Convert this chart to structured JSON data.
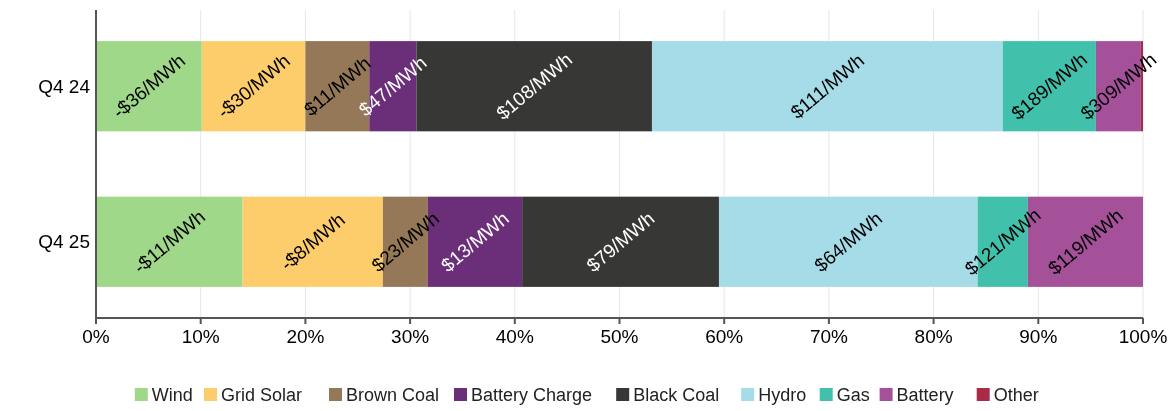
{
  "chart_data": {
    "type": "bar",
    "orientation": "horizontal",
    "stacked": true,
    "categories": [
      "Q4 24",
      "Q4 25"
    ],
    "series": [
      {
        "name": "Wind",
        "color": "#a0d88a",
        "values": [
          10.1,
          14.0
        ]
      },
      {
        "name": "Grid Solar",
        "color": "#fdcd6b",
        "values": [
          9.9,
          13.4
        ]
      },
      {
        "name": "Brown Coal",
        "color": "#957857",
        "values": [
          6.1,
          4.3
        ]
      },
      {
        "name": "Battery Charge",
        "color": "#6b2f7a",
        "values": [
          4.5,
          9.0
        ]
      },
      {
        "name": "Black Coal",
        "color": "#373836",
        "values": [
          22.5,
          18.8
        ]
      },
      {
        "name": "Hydro",
        "color": "#a6dbe8",
        "values": [
          33.5,
          24.7
        ]
      },
      {
        "name": "Gas",
        "color": "#41c1ab",
        "values": [
          8.9,
          4.8
        ]
      },
      {
        "name": "Battery",
        "color": "#a4519a",
        "values": [
          4.3,
          11.0
        ]
      },
      {
        "name": "Other",
        "color": "#a82c48",
        "values": [
          0.2,
          0
        ]
      }
    ],
    "annotations": [
      "-$36/MWh",
      "-$30/MWh",
      "$11/MWh",
      "$47/MWh",
      "$108/MWh",
      "$111/MWh",
      "$189/MWh",
      "$309/MWh",
      "-$11/MWh",
      "-$8/MWh",
      "$23/MWh",
      "$13/MWh",
      "$79/MWh",
      "$64/MWh",
      "$121/MWh",
      "$119/MWh"
    ],
    "xlim": [
      0,
      100
    ],
    "xticks": [
      {
        "value": 0,
        "label": "0%"
      },
      {
        "value": 10,
        "label": "10%"
      },
      {
        "value": 20,
        "label": "20%"
      },
      {
        "value": 30,
        "label": "30%"
      },
      {
        "value": 40,
        "label": "40%"
      },
      {
        "value": 50,
        "label": "50%"
      },
      {
        "value": 60,
        "label": "60%"
      },
      {
        "value": 70,
        "label": "70%"
      },
      {
        "value": 80,
        "label": "80%"
      },
      {
        "value": 90,
        "label": "90%"
      },
      {
        "value": 100,
        "label": "100%"
      }
    ],
    "grid": "x",
    "legend": "bottom"
  }
}
